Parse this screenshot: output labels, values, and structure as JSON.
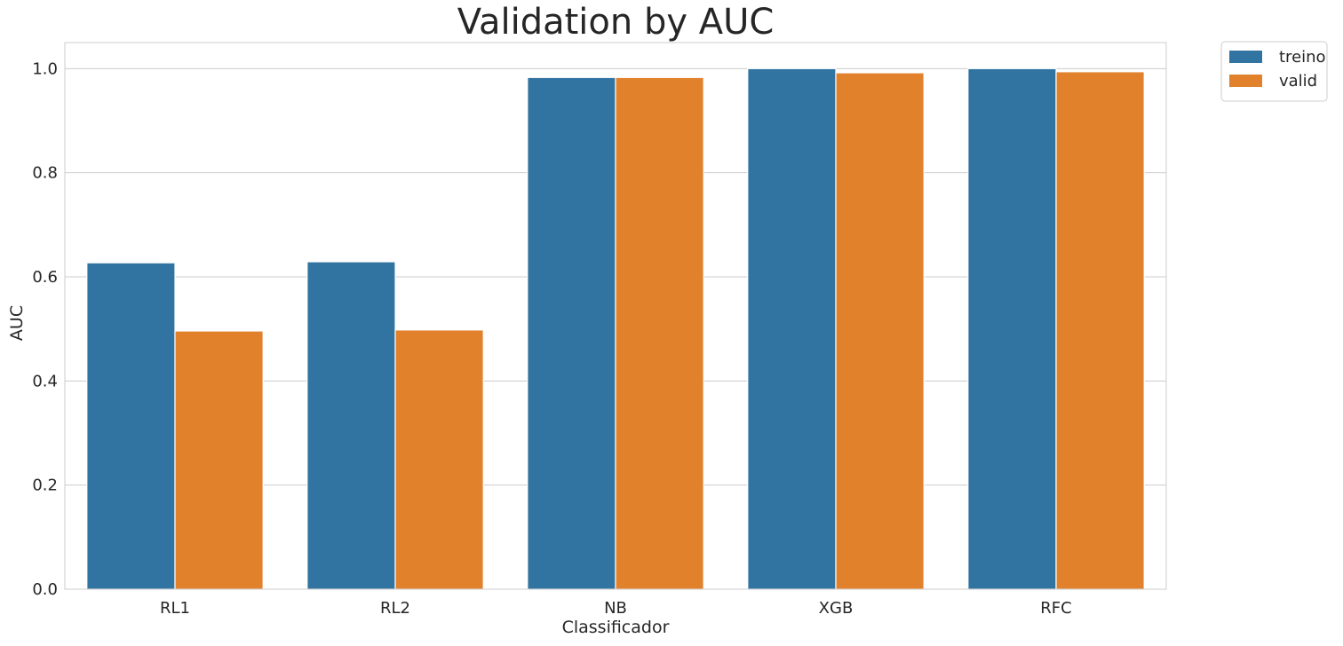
{
  "chart_data": {
    "type": "bar",
    "title": "Validation by AUC",
    "xlabel": "Classificador",
    "ylabel": "AUC",
    "categories": [
      "RL1",
      "RL2",
      "NB",
      "XGB",
      "RFC"
    ],
    "series": [
      {
        "name": "treino",
        "color": "#3274a1",
        "values": [
          0.627,
          0.629,
          0.983,
          1.0,
          1.0
        ]
      },
      {
        "name": "valid",
        "color": "#e1812c",
        "values": [
          0.496,
          0.498,
          0.983,
          0.992,
          0.994
        ]
      }
    ],
    "ylim": [
      0,
      1.05
    ],
    "yticks": [
      "0.0",
      "0.2",
      "0.4",
      "0.6",
      "0.8",
      "1.0"
    ],
    "grid": "horizontal",
    "legend_position": "outside-top-right"
  }
}
